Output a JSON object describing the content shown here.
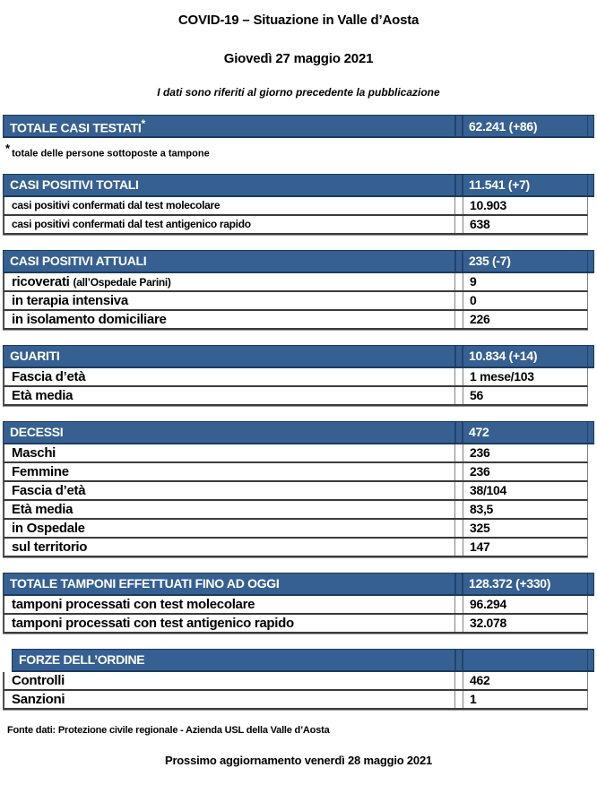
{
  "page": {
    "title": "COVID-19 – Situazione in Valle d’Aosta",
    "date": "Giovedì 27 maggio 2021",
    "note": "I dati sono riferiti al giorno precedente la pubblicazione",
    "source": "Fonte dati: Protezione civile regionale - Azienda USL della Valle d’Aosta",
    "next_update": "Prossimo aggiornamento venerdì 28 maggio 2021"
  },
  "colors": {
    "header_bg": "#366092",
    "header_text": "#ffffff",
    "header_border": "#1c3a5e",
    "row_h_border": "#3b3b3b",
    "row_v_border": "#808080"
  },
  "sections": [
    {
      "id": "totale-casi-testati",
      "header": "TOTALE CASI TESTATI",
      "header_suffix": "*",
      "value": "62.241 (+86)",
      "footnote_marker": "*",
      "footnote": "totale delle persone sottoposte a tampone",
      "rows": []
    },
    {
      "id": "casi-positivi-totali",
      "header": "CASI POSITIVI TOTALI",
      "value": "11.541 (+7)",
      "small_labels": true,
      "rows": [
        {
          "label": "casi positivi confermati dal test molecolare",
          "value": "10.903"
        },
        {
          "label": "casi positivi confermati dal test antigenico rapido",
          "value": "638"
        }
      ]
    },
    {
      "id": "casi-positivi-attuali",
      "header": "CASI POSITIVI ATTUALI",
      "value": "235 (-7)",
      "rows": [
        {
          "label": "ricoverati",
          "label_note": "(all’Ospedale Parini)",
          "value": "9"
        },
        {
          "label": "in terapia intensiva",
          "value": "0"
        },
        {
          "label": "in isolamento domiciliare",
          "value": "226"
        }
      ]
    },
    {
      "id": "guariti",
      "header": "GUARITI",
      "value": "10.834 (+14)",
      "rows": [
        {
          "label": "Fascia d’età",
          "value": "1 mese/103"
        },
        {
          "label": "Età media",
          "value": "56"
        }
      ]
    },
    {
      "id": "decessi",
      "header": "DECESSI",
      "value": "472",
      "rows": [
        {
          "label": "Maschi",
          "value": "236"
        },
        {
          "label": "Femmine",
          "value": "236"
        },
        {
          "label": "Fascia d’età",
          "value": "38/104"
        },
        {
          "label": "Età media",
          "value": "83,5"
        },
        {
          "label": "in Ospedale",
          "value": "325"
        },
        {
          "label": "sul territorio",
          "value": "147"
        }
      ]
    },
    {
      "id": "totale-tamponi",
      "header": "TOTALE TAMPONI EFFETTUATI FINO AD OGGI",
      "value": "128.372 (+330)",
      "rows": [
        {
          "label": "tamponi processati con test molecolare",
          "value": "96.294"
        },
        {
          "label": "tamponi processati con test antigenico rapido",
          "value": "32.078"
        }
      ]
    },
    {
      "id": "forze-ordine",
      "header": "FORZE DELL’ORDINE",
      "value": "",
      "indent": true,
      "rows": [
        {
          "label": "Controlli",
          "value": "462"
        },
        {
          "label": "Sanzioni",
          "value": "1"
        }
      ]
    }
  ]
}
